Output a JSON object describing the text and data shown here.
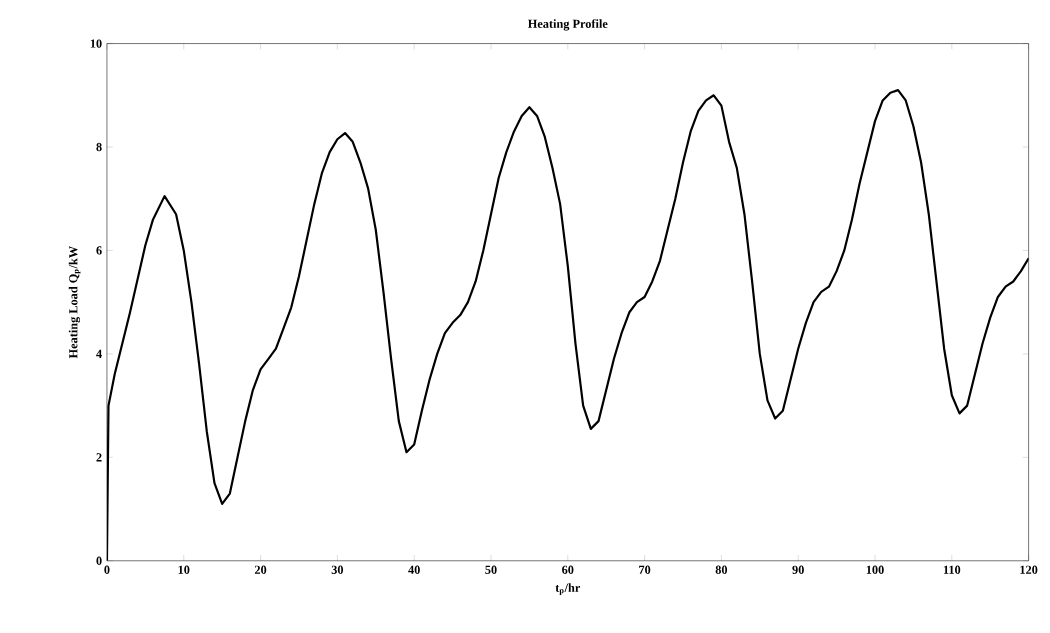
{
  "chart_data": {
    "type": "line",
    "title": "Heating Profile",
    "xlabel": "t$_{p}$/hr",
    "ylabel": "Heating Load Q$_{p}$/kW",
    "xlim": [
      0,
      120
    ],
    "ylim": [
      0,
      10
    ],
    "xticks": [
      0,
      10,
      20,
      30,
      40,
      50,
      60,
      70,
      80,
      90,
      100,
      110,
      120
    ],
    "yticks": [
      0,
      2,
      4,
      6,
      8,
      10
    ],
    "grid": false,
    "marker": "none",
    "line_style": "solid",
    "series": [
      {
        "color": "#000000",
        "x": [
          0,
          0.2,
          1,
          3,
          5,
          6,
          7.5,
          9,
          10,
          11,
          12,
          13,
          14,
          15,
          16,
          17,
          18,
          19,
          20,
          21,
          22,
          23,
          24,
          25,
          26,
          27,
          28,
          29,
          30,
          31,
          32,
          33,
          34,
          35,
          36,
          37,
          38,
          39,
          40,
          41,
          42,
          43,
          44,
          45,
          46,
          47,
          48,
          49,
          50,
          51,
          52,
          53,
          54,
          55,
          56,
          57,
          58,
          59,
          60,
          61,
          62,
          63,
          64,
          65,
          66,
          67,
          68,
          69,
          70,
          71,
          72,
          73,
          74,
          75,
          76,
          77,
          78,
          79,
          80,
          81,
          82,
          83,
          84,
          85,
          86,
          87,
          88,
          89,
          90,
          91,
          92,
          93,
          94,
          95,
          96,
          97,
          98,
          99,
          100,
          101,
          102,
          103,
          104,
          105,
          106,
          107,
          108,
          109,
          110,
          111,
          112,
          113,
          114,
          115,
          116,
          117,
          118,
          119,
          120
        ],
        "values": [
          0,
          3.0,
          3.6,
          4.8,
          6.1,
          6.6,
          7.05,
          6.7,
          6.0,
          5.0,
          3.8,
          2.5,
          1.5,
          1.1,
          1.3,
          2.0,
          2.7,
          3.3,
          3.7,
          3.9,
          4.1,
          4.5,
          4.9,
          5.5,
          6.2,
          6.9,
          7.5,
          7.9,
          8.15,
          8.27,
          8.1,
          7.7,
          7.2,
          6.4,
          5.2,
          3.9,
          2.7,
          2.1,
          2.25,
          2.9,
          3.5,
          4.0,
          4.4,
          4.6,
          4.75,
          5.0,
          5.4,
          6.0,
          6.7,
          7.4,
          7.9,
          8.3,
          8.6,
          8.77,
          8.6,
          8.2,
          7.6,
          6.9,
          5.7,
          4.2,
          3.0,
          2.55,
          2.7,
          3.3,
          3.9,
          4.4,
          4.8,
          5.0,
          5.1,
          5.4,
          5.8,
          6.4,
          7.0,
          7.7,
          8.3,
          8.7,
          8.9,
          9.0,
          8.8,
          8.1,
          7.6,
          6.7,
          5.4,
          4.0,
          3.1,
          2.75,
          2.9,
          3.5,
          4.1,
          4.6,
          5.0,
          5.2,
          5.3,
          5.6,
          6.0,
          6.6,
          7.3,
          7.9,
          8.5,
          8.9,
          9.05,
          9.1,
          8.9,
          8.4,
          7.7,
          6.7,
          5.4,
          4.1,
          3.2,
          2.85,
          3.0,
          3.6,
          4.2,
          4.7,
          5.1,
          5.3,
          5.4,
          5.6,
          5.85
        ]
      }
    ]
  }
}
